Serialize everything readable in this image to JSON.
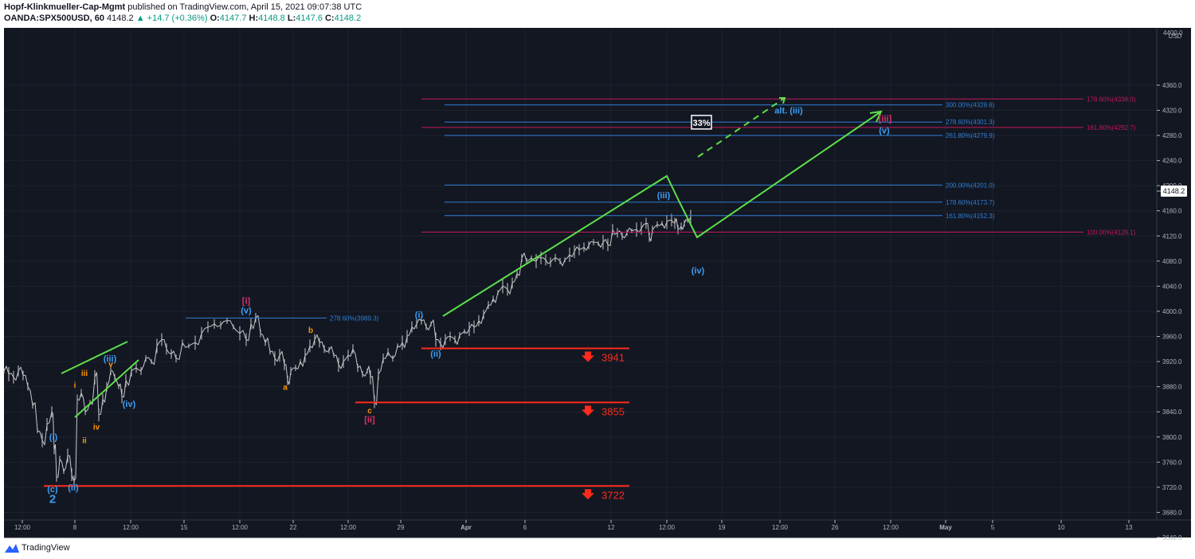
{
  "header": {
    "author": "Hopf-Klinkmueller-Cap-Mgmt",
    "published": "published on TradingView.com, April 15, 2021 09:07:38 UTC",
    "symbol": "OANDA:SPX500USD, 60",
    "last": "4148.2",
    "change": "▲ +14.7 (+0.36%)",
    "o_label": "O:",
    "o_value": "4147.7",
    "h_label": "H:",
    "h_value": "4148.8",
    "l_label": "L:",
    "l_value": "4147.6",
    "c_label": "C:",
    "c_value": "4148.2"
  },
  "footer": {
    "brand": "TradingView"
  },
  "colors": {
    "background": "#131722",
    "grid": "#1e222d",
    "candle": "#c8c8c8",
    "blue_line": "#2962ff",
    "fib_blue": "#2e7fd6",
    "fib_pink": "#c2185b",
    "green": "#5be04a",
    "red": "#ff2a1a",
    "orange": "#ff9800",
    "wave_blue": "#3b9ff5",
    "wave_pink": "#e0306a"
  },
  "chart_data": {
    "type": "candlestick",
    "currency": "USD",
    "last_price": "4148.2",
    "y_ticks": [
      "4360.0",
      "4320.0",
      "4280.0",
      "4240.0",
      "4200.0",
      "4160.0",
      "4120.0",
      "4080.0",
      "4040.0",
      "4000.0",
      "3960.0",
      "3920.0",
      "3880.0",
      "3840.0",
      "3800.0",
      "3760.0",
      "3720.0",
      "3680.0",
      "3640.0"
    ],
    "y_top_partial": "4400.0",
    "x_ticks": [
      "12:00",
      "8",
      "12:00",
      "15",
      "12:00",
      "22",
      "12:00",
      "29",
      "Apr",
      "6",
      "12",
      "12:00",
      "19",
      "12:00",
      "26",
      "12:00",
      "May",
      "5",
      "10",
      "13"
    ],
    "price_path": [
      [
        0,
        3905
      ],
      [
        6,
        3900
      ],
      [
        12,
        3895
      ],
      [
        18,
        3905
      ],
      [
        24,
        3898
      ],
      [
        30,
        3880
      ],
      [
        36,
        3850
      ],
      [
        42,
        3810
      ],
      [
        48,
        3795
      ],
      [
        54,
        3820
      ],
      [
        60,
        3840
      ],
      [
        63,
        3780
      ],
      [
        66,
        3735
      ],
      [
        70,
        3765
      ],
      [
        75,
        3745
      ],
      [
        80,
        3770
      ],
      [
        85,
        3740
      ],
      [
        88,
        3730
      ],
      [
        92,
        3860
      ],
      [
        97,
        3870
      ],
      [
        102,
        3840
      ],
      [
        108,
        3855
      ],
      [
        114,
        3895
      ],
      [
        119,
        3835
      ],
      [
        124,
        3860
      ],
      [
        129,
        3880
      ],
      [
        134,
        3905
      ],
      [
        139,
        3895
      ],
      [
        144,
        3880
      ],
      [
        148,
        3865
      ],
      [
        153,
        3890
      ],
      [
        160,
        3905
      ],
      [
        166,
        3910
      ],
      [
        172,
        3905
      ],
      [
        178,
        3925
      ],
      [
        185,
        3920
      ],
      [
        192,
        3945
      ],
      [
        198,
        3955
      ],
      [
        204,
        3940
      ],
      [
        210,
        3932
      ],
      [
        216,
        3925
      ],
      [
        224,
        3950
      ],
      [
        232,
        3945
      ],
      [
        240,
        3950
      ],
      [
        248,
        3965
      ],
      [
        256,
        3975
      ],
      [
        264,
        3980
      ],
      [
        272,
        3978
      ],
      [
        280,
        3985
      ],
      [
        288,
        3975
      ],
      [
        296,
        3965
      ],
      [
        304,
        3955
      ],
      [
        310,
        3980
      ],
      [
        316,
        3990
      ],
      [
        322,
        3965
      ],
      [
        328,
        3950
      ],
      [
        334,
        3935
      ],
      [
        340,
        3925
      ],
      [
        346,
        3930
      ],
      [
        352,
        3915
      ],
      [
        356,
        3890
      ],
      [
        360,
        3905
      ],
      [
        366,
        3910
      ],
      [
        372,
        3920
      ],
      [
        378,
        3930
      ],
      [
        384,
        3945
      ],
      [
        390,
        3955
      ],
      [
        396,
        3950
      ],
      [
        402,
        3940
      ],
      [
        408,
        3938
      ],
      [
        414,
        3930
      ],
      [
        420,
        3915
      ],
      [
        426,
        3920
      ],
      [
        432,
        3930
      ],
      [
        438,
        3940
      ],
      [
        444,
        3910
      ],
      [
        450,
        3900
      ],
      [
        456,
        3905
      ],
      [
        460,
        3895
      ],
      [
        465,
        3856
      ],
      [
        470,
        3900
      ],
      [
        476,
        3925
      ],
      [
        482,
        3935
      ],
      [
        488,
        3925
      ],
      [
        494,
        3945
      ],
      [
        500,
        3950
      ],
      [
        506,
        3960
      ],
      [
        512,
        3975
      ],
      [
        518,
        3980
      ],
      [
        524,
        3985
      ],
      [
        530,
        3975
      ],
      [
        536,
        3980
      ],
      [
        542,
        3955
      ],
      [
        548,
        3948
      ],
      [
        554,
        3955
      ],
      [
        560,
        3960
      ],
      [
        566,
        3955
      ],
      [
        572,
        3962
      ],
      [
        578,
        3968
      ],
      [
        584,
        3972
      ],
      [
        590,
        3975
      ],
      [
        596,
        3985
      ],
      [
        602,
        3995
      ],
      [
        608,
        4010
      ],
      [
        614,
        4020
      ],
      [
        620,
        4030
      ],
      [
        626,
        4040
      ],
      [
        632,
        4035
      ],
      [
        638,
        4045
      ],
      [
        644,
        4060
      ],
      [
        650,
        4085
      ],
      [
        656,
        4080
      ],
      [
        662,
        4085
      ],
      [
        668,
        4080
      ],
      [
        674,
        4085
      ],
      [
        680,
        4082
      ],
      [
        686,
        4078
      ],
      [
        692,
        4085
      ],
      [
        698,
        4080
      ],
      [
        704,
        4082
      ],
      [
        710,
        4090
      ],
      [
        716,
        4095
      ],
      [
        722,
        4098
      ],
      [
        728,
        4102
      ],
      [
        734,
        4105
      ],
      [
        740,
        4110
      ],
      [
        746,
        4108
      ],
      [
        752,
        4110
      ],
      [
        758,
        4106
      ],
      [
        764,
        4130
      ],
      [
        770,
        4125
      ],
      [
        776,
        4120
      ],
      [
        782,
        4125
      ],
      [
        788,
        4128
      ],
      [
        794,
        4130
      ],
      [
        800,
        4132
      ],
      [
        806,
        4140
      ],
      [
        810,
        4118
      ],
      [
        814,
        4130
      ],
      [
        820,
        4138
      ],
      [
        826,
        4140
      ],
      [
        832,
        4142
      ],
      [
        838,
        4145
      ],
      [
        842,
        4140
      ],
      [
        846,
        4130
      ],
      [
        850,
        4135
      ],
      [
        854,
        4140
      ],
      [
        858,
        4145
      ],
      [
        862,
        4150
      ]
    ],
    "fib_levels": [
      {
        "label": "300.00%(4328.6)",
        "price": 4328.6,
        "color": "blue"
      },
      {
        "label": "278.60%(4301.3)",
        "price": 4301.3,
        "color": "blue"
      },
      {
        "label": "261.80%(4279.9)",
        "price": 4279.9,
        "color": "blue"
      },
      {
        "label": "200.00%(4201.0)",
        "price": 4201.0,
        "color": "blue"
      },
      {
        "label": "178.60%(4173.7)",
        "price": 4173.7,
        "color": "blue"
      },
      {
        "label": "161.80%(4152.3)",
        "price": 4152.3,
        "color": "blue"
      },
      {
        "label": "178.60%(4338.0)",
        "price": 4338.0,
        "color": "pink"
      },
      {
        "label": "161.80%(4292.7)",
        "price": 4292.7,
        "color": "pink"
      },
      {
        "label": "100.00%(4126.1)",
        "price": 4126.1,
        "color": "pink"
      },
      {
        "label": "278.60%(3989.3)",
        "price": 3989.3,
        "color": "blue"
      }
    ],
    "support_levels": [
      {
        "label": "3941",
        "price": 3941
      },
      {
        "label": "3855",
        "price": 3855
      },
      {
        "label": "3722",
        "price": 3722
      }
    ],
    "wave_labels": [
      {
        "text": "(c)",
        "price": 3712,
        "color": "blue"
      },
      {
        "text": "2",
        "price": 3695,
        "color": "blue"
      },
      {
        "text": "(i)",
        "price": 3795,
        "color": "blue"
      },
      {
        "text": "(ii)",
        "price": 3715,
        "color": "blue"
      },
      {
        "text": "(iii)",
        "price": 3920,
        "color": "blue"
      },
      {
        "text": "(iv)",
        "price": 3848,
        "color": "blue"
      },
      {
        "text": "i",
        "price": 3878,
        "color": "orange"
      },
      {
        "text": "ii",
        "price": 3790,
        "color": "orange"
      },
      {
        "text": "iii",
        "price": 3897,
        "color": "orange"
      },
      {
        "text": "iv",
        "price": 3812,
        "color": "orange"
      },
      {
        "text": "v",
        "price": 3912,
        "color": "orange"
      },
      {
        "text": "[i]",
        "price": 4012,
        "color": "pink"
      },
      {
        "text": "(v)",
        "price": 3997,
        "color": "blue"
      },
      {
        "text": "b",
        "price": 3966,
        "color": "orange"
      },
      {
        "text": "a",
        "price": 3875,
        "color": "orange"
      },
      {
        "text": "c",
        "price": 3838,
        "color": "orange"
      },
      {
        "text": "[ii]",
        "price": 3823,
        "color": "pink"
      },
      {
        "text": "(i)",
        "price": 3990,
        "color": "blue"
      },
      {
        "text": "(ii)",
        "price": 3928,
        "color": "blue"
      },
      {
        "text": "(iii)",
        "price": 4180,
        "color": "blue"
      },
      {
        "text": "(iv)",
        "price": 4060,
        "color": "blue"
      },
      {
        "text": "alt. (iii)",
        "price": 4315,
        "color": "blue"
      },
      {
        "text": "[iii]",
        "price": 4302,
        "color": "pink"
      },
      {
        "text": "(v)",
        "price": 4283,
        "color": "blue"
      }
    ],
    "probability_box": "33%"
  }
}
